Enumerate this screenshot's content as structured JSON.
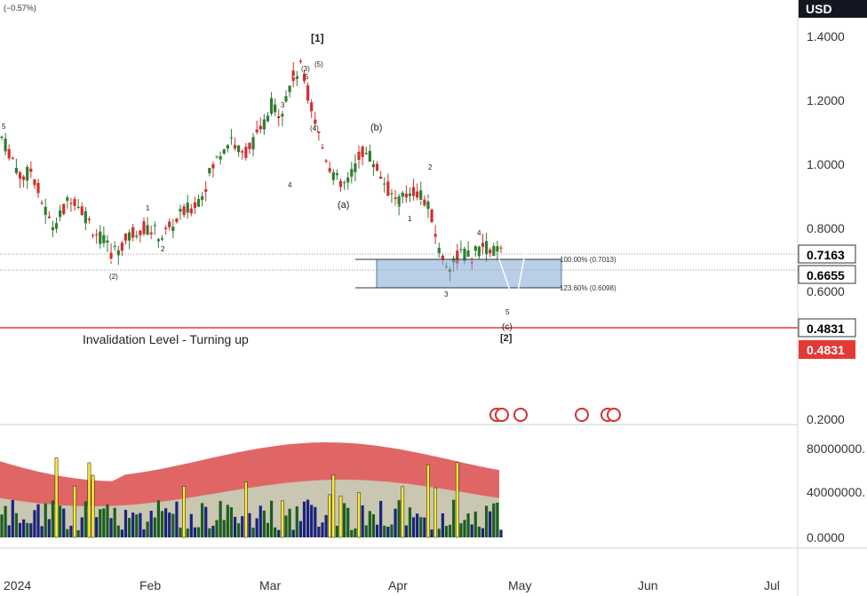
{
  "header": {
    "change_pct": "(−0.57%)"
  },
  "axis": {
    "currency": "USD",
    "price_ticks": [
      "1.4000",
      "1.2000",
      "1.0000",
      "0.8000",
      "0.6000",
      "0.2000"
    ],
    "volume_ticks": [
      "80000000.",
      "40000000.",
      "0.0000"
    ],
    "time_labels": [
      "2024",
      "Feb",
      "Mar",
      "Apr",
      "May",
      "Jun",
      "Jul"
    ]
  },
  "price_badges": [
    {
      "label": "0.7163",
      "style": "white"
    },
    {
      "label": "0.6655",
      "style": "white"
    },
    {
      "label": "0.4831",
      "style": "white"
    },
    {
      "label": "0.4831",
      "style": "red"
    }
  ],
  "annotations": {
    "invalidation": "Invalidation Level - Turning up",
    "fib_100": "100.00% (0.7013)",
    "fib_123": "123.60% (0.6098)",
    "wave_labels": [
      "[1]",
      "(3)",
      "(5)",
      "5",
      "3",
      "(4)",
      "4",
      "5",
      "1",
      "2",
      "(2)",
      "(b)",
      "(a)",
      "1",
      "2",
      "3",
      "4",
      "5",
      "(c)",
      "[2]"
    ]
  },
  "colors": {
    "up": "#2e7d32",
    "down": "#d32f2f",
    "invalidation_line": "#e53935",
    "fib_box": "#7fa7d6",
    "volume_band_outer": "#e06666",
    "volume_band_inner": "#c9c6b2",
    "volume_up": "#1b5e20",
    "volume_down": "#1a237e",
    "volume_highlight": "#ffeb3b"
  },
  "chart_data": {
    "type": "candlestick",
    "ylim": [
      0.2,
      1.45
    ],
    "x_labels": [
      "2024",
      "Feb",
      "Mar",
      "Apr",
      "May",
      "Jun",
      "Jul"
    ],
    "close_path": [
      1.08,
      1.02,
      0.95,
      0.98,
      0.88,
      0.8,
      0.84,
      0.9,
      0.86,
      0.8,
      0.76,
      0.72,
      0.74,
      0.78,
      0.8,
      0.79,
      0.77,
      0.8,
      0.84,
      0.86,
      0.9,
      0.98,
      1.04,
      1.08,
      1.02,
      1.06,
      1.1,
      1.18,
      1.16,
      1.26,
      1.3,
      1.18,
      1.06,
      0.98,
      0.92,
      0.96,
      1.04,
      1.02,
      0.96,
      0.9,
      0.88,
      0.92,
      0.9,
      0.84,
      0.7,
      0.68,
      0.72,
      0.7,
      0.74,
      0.73,
      0.72
    ],
    "projection": [
      0.72,
      0.55,
      1.28
    ],
    "invalidation_level": 0.4831,
    "fib_levels": [
      0.7013,
      0.6098
    ],
    "current_price": 0.7163
  }
}
